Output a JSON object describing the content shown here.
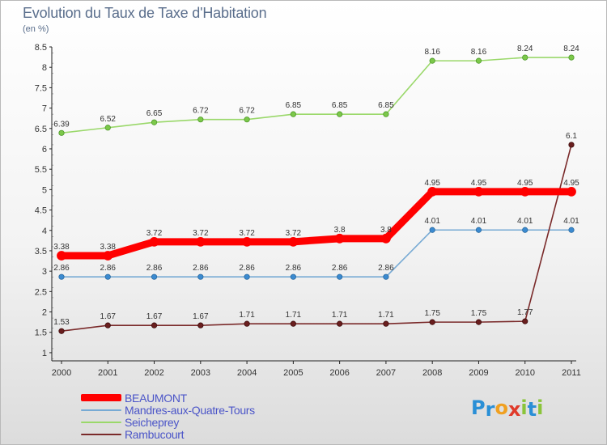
{
  "chart_data": {
    "type": "line",
    "title": "Evolution du Taux de Taxe d'Habitation",
    "subtitle": "(en %)",
    "xlabel": "",
    "ylabel": "",
    "x": [
      "2000",
      "2001",
      "2002",
      "2003",
      "2004",
      "2005",
      "2006",
      "2007",
      "2008",
      "2009",
      "2010",
      "2011"
    ],
    "ylim": [
      0.8,
      8.5
    ],
    "yticks": [
      "1",
      "1.5",
      "2",
      "2.5",
      "3",
      "3.5",
      "4",
      "4.5",
      "5",
      "5.5",
      "6",
      "6.5",
      "7",
      "7.5",
      "8",
      "8.5"
    ],
    "grid": false,
    "legend_position": "bottom-left",
    "series": [
      {
        "name": "BEAUMONT",
        "color": "#ff0000",
        "values": [
          3.38,
          3.38,
          3.72,
          3.72,
          3.72,
          3.72,
          3.8,
          3.8,
          4.95,
          4.95,
          4.95,
          4.95
        ],
        "labels": [
          "3.38",
          "3.38",
          "3.72",
          "3.72",
          "3.72",
          "3.72",
          "3.8",
          "3.8",
          "4.95",
          "4.95",
          "4.95",
          "4.95"
        ]
      },
      {
        "name": "Mandres-aux-Quatre-Tours",
        "color": "#77aad4",
        "values": [
          2.86,
          2.86,
          2.86,
          2.86,
          2.86,
          2.86,
          2.86,
          2.86,
          4.01,
          4.01,
          4.01,
          4.01
        ],
        "labels": [
          "2.86",
          "2.86",
          "2.86",
          "2.86",
          "2.86",
          "2.86",
          "2.86",
          "2.86",
          "4.01",
          "4.01",
          "4.01",
          "4.01"
        ]
      },
      {
        "name": "Seicheprey",
        "color": "#9ad86a",
        "values": [
          6.39,
          6.52,
          6.65,
          6.72,
          6.72,
          6.85,
          6.85,
          6.85,
          8.16,
          8.16,
          8.24,
          8.24
        ],
        "labels": [
          "6.39",
          "6.52",
          "6.65",
          "6.72",
          "6.72",
          "6.85",
          "6.85",
          "6.85",
          "8.16",
          "8.16",
          "8.24",
          "8.24"
        ]
      },
      {
        "name": "Rambucourt",
        "color": "#7a2a2a",
        "values": [
          1.53,
          1.67,
          1.67,
          1.67,
          1.71,
          1.71,
          1.71,
          1.71,
          1.75,
          1.75,
          1.77,
          6.1
        ],
        "labels": [
          "1.53",
          "1.67",
          "1.67",
          "1.67",
          "1.71",
          "1.71",
          "1.71",
          "1.71",
          "1.75",
          "1.75",
          "1.77",
          "6.1"
        ]
      }
    ]
  },
  "logo": {
    "text": "Proxiti",
    "letters": [
      {
        "ch": "P",
        "color": "#2a8fd6"
      },
      {
        "ch": "r",
        "color": "#2a8fd6"
      },
      {
        "ch": "o",
        "color": "#f0a020"
      },
      {
        "ch": "x",
        "color": "#e03a2a"
      },
      {
        "ch": "i",
        "color": "#8ac43a"
      },
      {
        "ch": "t",
        "color": "#2a8fd6"
      },
      {
        "ch": "i",
        "color": "#8ac43a"
      }
    ]
  }
}
